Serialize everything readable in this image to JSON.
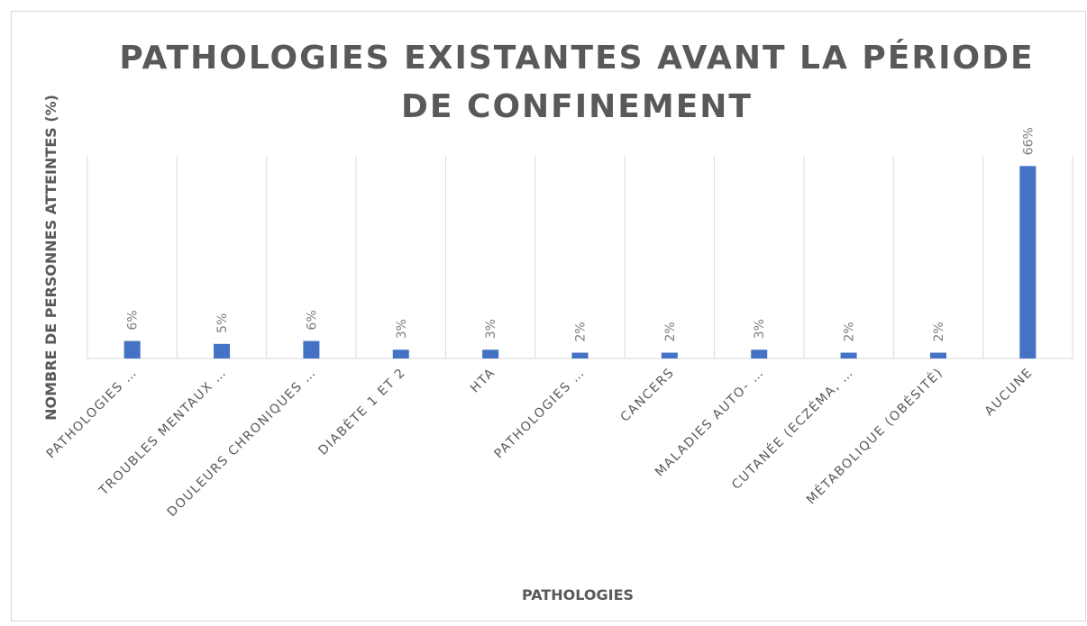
{
  "chart_data": {
    "type": "bar",
    "title": "PATHOLOGIES EXISTANTES AVANT LA PÉRIODE DE CONFINEMENT",
    "x_label": "PATHOLOGIES",
    "y_label": "NOMBRE DE PERSONNES ATTEINTES (%)",
    "categories": [
      "PATHOLOGIES …",
      "TROUBLES MENTAUX …",
      "DOULEURS CHRONIQUES …",
      "DIABÈTE 1 ET 2",
      "HTA",
      "PATHOLOGIES …",
      "CANCERS",
      "MALADIES AUTO- …",
      "CUTANÉE (ECZÉMA, …",
      "MÉTABOLIQUE (OBÉSITÉ)",
      "AUCUNE"
    ],
    "values": [
      6,
      5,
      6,
      3,
      3,
      2,
      2,
      3,
      2,
      2,
      66
    ],
    "value_labels": [
      "6%",
      "5%",
      "6%",
      "3%",
      "3%",
      "2%",
      "2%",
      "3%",
      "2%",
      "2%",
      "66%"
    ],
    "color": "#4472c4",
    "ylim": [
      0,
      69.5
    ],
    "grid": true
  }
}
